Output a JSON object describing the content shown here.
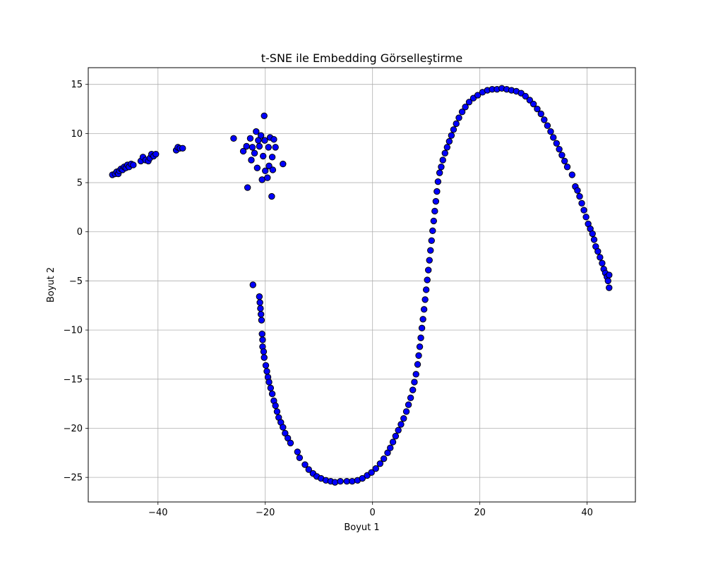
{
  "chart_data": {
    "type": "scatter",
    "title": "t-SNE ile Embedding Görselleştirme",
    "xlabel": "Boyut 1",
    "ylabel": "Boyut 2",
    "xlim": [
      -53,
      49
    ],
    "ylim": [
      -27.5,
      16.7
    ],
    "xticks": [
      -40,
      -20,
      0,
      20,
      40
    ],
    "yticks": [
      -25,
      -20,
      -15,
      -10,
      -5,
      0,
      5,
      10,
      15
    ],
    "grid": true,
    "legend": "none",
    "marker_color": "#0000ff",
    "marker_edge_color": "#000000",
    "series": [
      {
        "points": [
          [
            -48.5,
            5.8
          ],
          [
            -48.0,
            5.9
          ],
          [
            -47.7,
            6.1
          ],
          [
            -47.4,
            5.9
          ],
          [
            -47.2,
            6.2
          ],
          [
            -46.9,
            6.4
          ],
          [
            -46.6,
            6.3
          ],
          [
            -46.3,
            6.6
          ],
          [
            -46.0,
            6.5
          ],
          [
            -45.7,
            6.8
          ],
          [
            -45.4,
            6.6
          ],
          [
            -45.0,
            6.9
          ],
          [
            -44.6,
            6.8
          ],
          [
            -43.2,
            7.2
          ],
          [
            -42.8,
            7.6
          ],
          [
            -42.3,
            7.3
          ],
          [
            -41.8,
            7.2
          ],
          [
            -41.5,
            7.5
          ],
          [
            -41.2,
            7.9
          ],
          [
            -40.8,
            7.7
          ],
          [
            -40.4,
            7.9
          ],
          [
            -36.6,
            8.3
          ],
          [
            -36.3,
            8.6
          ],
          [
            -35.9,
            8.5
          ],
          [
            -35.4,
            8.5
          ],
          [
            -25.9,
            9.5
          ],
          [
            -24.1,
            8.2
          ],
          [
            -23.5,
            8.7
          ],
          [
            -23.3,
            4.5
          ],
          [
            -22.8,
            9.5
          ],
          [
            -22.6,
            7.3
          ],
          [
            -22.4,
            8.6
          ],
          [
            -22.0,
            8.0
          ],
          [
            -21.7,
            10.2
          ],
          [
            -21.5,
            6.5
          ],
          [
            -21.3,
            9.3
          ],
          [
            -21.1,
            8.7
          ],
          [
            -20.8,
            9.8
          ],
          [
            -20.6,
            5.3
          ],
          [
            -20.4,
            7.7
          ],
          [
            -20.2,
            11.8
          ],
          [
            -20.1,
            9.3
          ],
          [
            -20.0,
            6.2
          ],
          [
            -19.6,
            5.5
          ],
          [
            -19.4,
            8.6
          ],
          [
            -19.3,
            6.7
          ],
          [
            -19.1,
            9.6
          ],
          [
            -18.8,
            3.6
          ],
          [
            -18.7,
            7.6
          ],
          [
            -18.6,
            6.3
          ],
          [
            -18.4,
            9.4
          ],
          [
            -18.1,
            8.6
          ],
          [
            -16.7,
            6.9
          ],
          [
            -22.3,
            -5.4
          ],
          [
            -21.1,
            -6.6
          ],
          [
            -21.0,
            -7.2
          ],
          [
            -20.9,
            -7.8
          ],
          [
            -20.8,
            -8.4
          ],
          [
            -20.7,
            -9.0
          ],
          [
            -20.6,
            -10.4
          ],
          [
            -20.5,
            -11.0
          ],
          [
            -20.5,
            -11.7
          ],
          [
            -20.3,
            -12.2
          ],
          [
            -20.2,
            -12.8
          ],
          [
            -19.9,
            -13.6
          ],
          [
            -19.7,
            -14.2
          ],
          [
            -19.5,
            -14.8
          ],
          [
            -19.3,
            -15.3
          ],
          [
            -19.0,
            -15.9
          ],
          [
            -18.7,
            -16.5
          ],
          [
            -18.4,
            -17.2
          ],
          [
            -18.1,
            -17.7
          ],
          [
            -17.8,
            -18.3
          ],
          [
            -17.5,
            -18.9
          ],
          [
            -17.1,
            -19.4
          ],
          [
            -16.7,
            -19.9
          ],
          [
            -16.3,
            -20.5
          ],
          [
            -15.8,
            -21.0
          ],
          [
            -15.3,
            -21.5
          ],
          [
            -14.0,
            -22.4
          ],
          [
            -13.6,
            -23.0
          ],
          [
            -12.6,
            -23.7
          ],
          [
            -11.9,
            -24.2
          ],
          [
            -11.1,
            -24.6
          ],
          [
            -10.4,
            -24.9
          ],
          [
            -9.6,
            -25.1
          ],
          [
            -8.7,
            -25.3
          ],
          [
            -7.8,
            -25.4
          ],
          [
            -7.0,
            -25.5
          ],
          [
            -6.0,
            -25.4
          ],
          [
            -4.8,
            -25.4
          ],
          [
            -3.8,
            -25.4
          ],
          [
            -2.8,
            -25.3
          ],
          [
            -1.9,
            -25.1
          ],
          [
            -1.0,
            -24.8
          ],
          [
            -0.2,
            -24.5
          ],
          [
            0.6,
            -24.1
          ],
          [
            1.4,
            -23.6
          ],
          [
            2.1,
            -23.1
          ],
          [
            2.8,
            -22.5
          ],
          [
            3.3,
            -22.0
          ],
          [
            3.8,
            -21.4
          ],
          [
            4.3,
            -20.8
          ],
          [
            4.8,
            -20.2
          ],
          [
            5.3,
            -19.6
          ],
          [
            5.8,
            -19.0
          ],
          [
            6.3,
            -18.3
          ],
          [
            6.7,
            -17.6
          ],
          [
            7.1,
            -16.9
          ],
          [
            7.5,
            -16.1
          ],
          [
            7.8,
            -15.3
          ],
          [
            8.1,
            -14.5
          ],
          [
            8.4,
            -13.5
          ],
          [
            8.6,
            -12.6
          ],
          [
            8.8,
            -11.7
          ],
          [
            9.0,
            -10.8
          ],
          [
            9.2,
            -9.8
          ],
          [
            9.4,
            -8.9
          ],
          [
            9.6,
            -7.9
          ],
          [
            9.8,
            -6.9
          ],
          [
            10.0,
            -5.9
          ],
          [
            10.2,
            -4.9
          ],
          [
            10.4,
            -3.9
          ],
          [
            10.6,
            -2.9
          ],
          [
            10.8,
            -1.9
          ],
          [
            11.0,
            -0.9
          ],
          [
            11.2,
            0.1
          ],
          [
            11.4,
            1.1
          ],
          [
            11.6,
            2.1
          ],
          [
            11.8,
            3.1
          ],
          [
            12.0,
            4.1
          ],
          [
            12.2,
            5.1
          ],
          [
            12.5,
            6.0
          ],
          [
            12.8,
            6.6
          ],
          [
            13.1,
            7.3
          ],
          [
            13.5,
            8.0
          ],
          [
            13.9,
            8.6
          ],
          [
            14.3,
            9.2
          ],
          [
            14.7,
            9.8
          ],
          [
            15.1,
            10.4
          ],
          [
            15.6,
            11.0
          ],
          [
            16.1,
            11.6
          ],
          [
            16.7,
            12.2
          ],
          [
            17.3,
            12.7
          ],
          [
            18.0,
            13.2
          ],
          [
            18.8,
            13.6
          ],
          [
            19.6,
            13.9
          ],
          [
            20.5,
            14.2
          ],
          [
            21.4,
            14.4
          ],
          [
            22.3,
            14.5
          ],
          [
            23.2,
            14.5
          ],
          [
            24.1,
            14.6
          ],
          [
            25.0,
            14.5
          ],
          [
            25.9,
            14.4
          ],
          [
            26.8,
            14.3
          ],
          [
            27.7,
            14.1
          ],
          [
            28.5,
            13.8
          ],
          [
            29.3,
            13.4
          ],
          [
            30.0,
            13.0
          ],
          [
            30.7,
            12.5
          ],
          [
            31.4,
            12.0
          ],
          [
            32.0,
            11.4
          ],
          [
            32.6,
            10.8
          ],
          [
            33.2,
            10.2
          ],
          [
            33.7,
            9.6
          ],
          [
            34.3,
            9.0
          ],
          [
            34.8,
            8.4
          ],
          [
            35.3,
            7.8
          ],
          [
            35.8,
            7.2
          ],
          [
            36.3,
            6.6
          ],
          [
            37.2,
            5.8
          ],
          [
            37.8,
            4.6
          ],
          [
            38.2,
            4.2
          ],
          [
            38.6,
            3.6
          ],
          [
            39.0,
            2.9
          ],
          [
            39.4,
            2.2
          ],
          [
            39.8,
            1.5
          ],
          [
            40.2,
            0.8
          ],
          [
            40.6,
            0.3
          ],
          [
            41.0,
            -0.2
          ],
          [
            41.3,
            -0.8
          ],
          [
            41.6,
            -1.5
          ],
          [
            42.0,
            -2.0
          ],
          [
            42.4,
            -2.6
          ],
          [
            42.8,
            -3.2
          ],
          [
            43.1,
            -3.8
          ],
          [
            43.4,
            -4.2
          ],
          [
            43.7,
            -4.6
          ],
          [
            43.9,
            -5.0
          ],
          [
            44.1,
            -4.4
          ],
          [
            44.1,
            -5.7
          ]
        ]
      }
    ]
  }
}
